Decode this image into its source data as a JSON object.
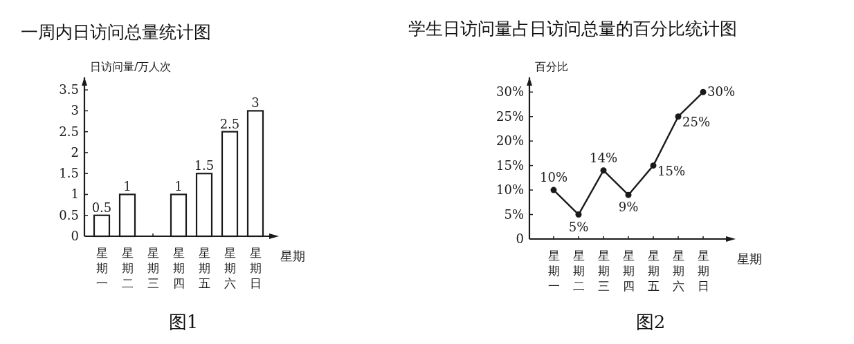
{
  "chart_data": [
    {
      "type": "bar",
      "title": "一周内日访问总量统计图",
      "ylabel": "日访问量/万人次",
      "xlabel": "星期",
      "categories": [
        "星期一",
        "星期二",
        "星期三",
        "星期四",
        "星期五",
        "星期六",
        "星期日"
      ],
      "values": [
        0.5,
        1,
        null,
        1,
        1.5,
        2.5,
        3
      ],
      "color": "#ffffff",
      "data_labels": true,
      "ylim": [
        0,
        3.8
      ],
      "yticks": [
        0,
        0.5,
        1,
        1.5,
        2,
        2.5,
        3,
        3.5
      ],
      "grid": false,
      "annotations": [
        "图1"
      ]
    },
    {
      "type": "line",
      "title": "学生日访问量占日访问总量的百分比统计图",
      "ylabel": "百分比",
      "xlabel": "星期",
      "categories": [
        "星期一",
        "星期二",
        "星期三",
        "星期四",
        "星期五",
        "星期六",
        "星期日"
      ],
      "values": [
        10,
        5,
        14,
        9,
        15,
        25,
        30
      ],
      "value_labels": [
        "10%",
        "5%",
        "14%",
        "9%",
        "15%",
        "25%",
        "30%"
      ],
      "color": "#1a1a1a",
      "marker": "circle",
      "line_style": "solid",
      "ylim": [
        0,
        33
      ],
      "yticks": [
        0,
        {
          "value": 5,
          "label": "5%"
        },
        {
          "value": 10,
          "label": "10%"
        },
        {
          "value": 15,
          "label": "15%"
        },
        {
          "value": 20,
          "label": "20%"
        },
        {
          "value": 25,
          "label": "25%"
        },
        {
          "value": 30,
          "label": "30%"
        }
      ],
      "grid": false,
      "annotations": [
        "图2"
      ]
    }
  ]
}
